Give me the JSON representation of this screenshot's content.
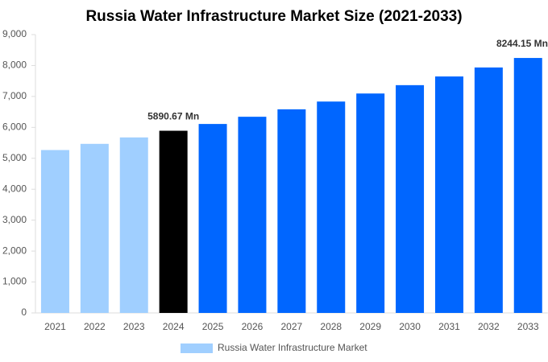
{
  "chart_data": {
    "type": "bar",
    "title": "Russia Water Infrastructure Market Size (2021-2033)",
    "categories": [
      "2021",
      "2022",
      "2023",
      "2024",
      "2025",
      "2026",
      "2027",
      "2028",
      "2029",
      "2030",
      "2031",
      "2032",
      "2033"
    ],
    "series": [
      {
        "name": "Russia Water Infrastructure Market",
        "color": "#a0cfff",
        "colors": [
          "#a0cfff",
          "#a0cfff",
          "#a0cfff",
          "#000000",
          "#0066ff",
          "#0066ff",
          "#0066ff",
          "#0066ff",
          "#0066ff",
          "#0066ff",
          "#0066ff",
          "#0066ff",
          "#0066ff"
        ],
        "values": [
          5267,
          5467,
          5675,
          5890.67,
          6110,
          6343,
          6584,
          6835,
          7095,
          7365,
          7646,
          7937,
          8244.15
        ],
        "value_labels": [
          null,
          null,
          null,
          "5890.67 Mn",
          null,
          null,
          null,
          null,
          null,
          null,
          null,
          null,
          "8244.15 Mn"
        ]
      }
    ],
    "ylim": [
      0,
      9000
    ],
    "yticks": [
      0,
      {
        "value": 1000,
        "label": "1,000"
      },
      {
        "value": 2000,
        "label": "2,000"
      },
      {
        "value": 3000,
        "label": "3,000"
      },
      {
        "value": 4000,
        "label": "4,000"
      },
      {
        "value": 5000,
        "label": "5,000"
      },
      {
        "value": 6000,
        "label": "6,000"
      },
      {
        "value": 7000,
        "label": "7,000"
      },
      {
        "value": 8000,
        "label": "8,000"
      },
      {
        "value": 9000,
        "label": "9,000"
      }
    ],
    "grid": false,
    "legend": "bottom"
  }
}
